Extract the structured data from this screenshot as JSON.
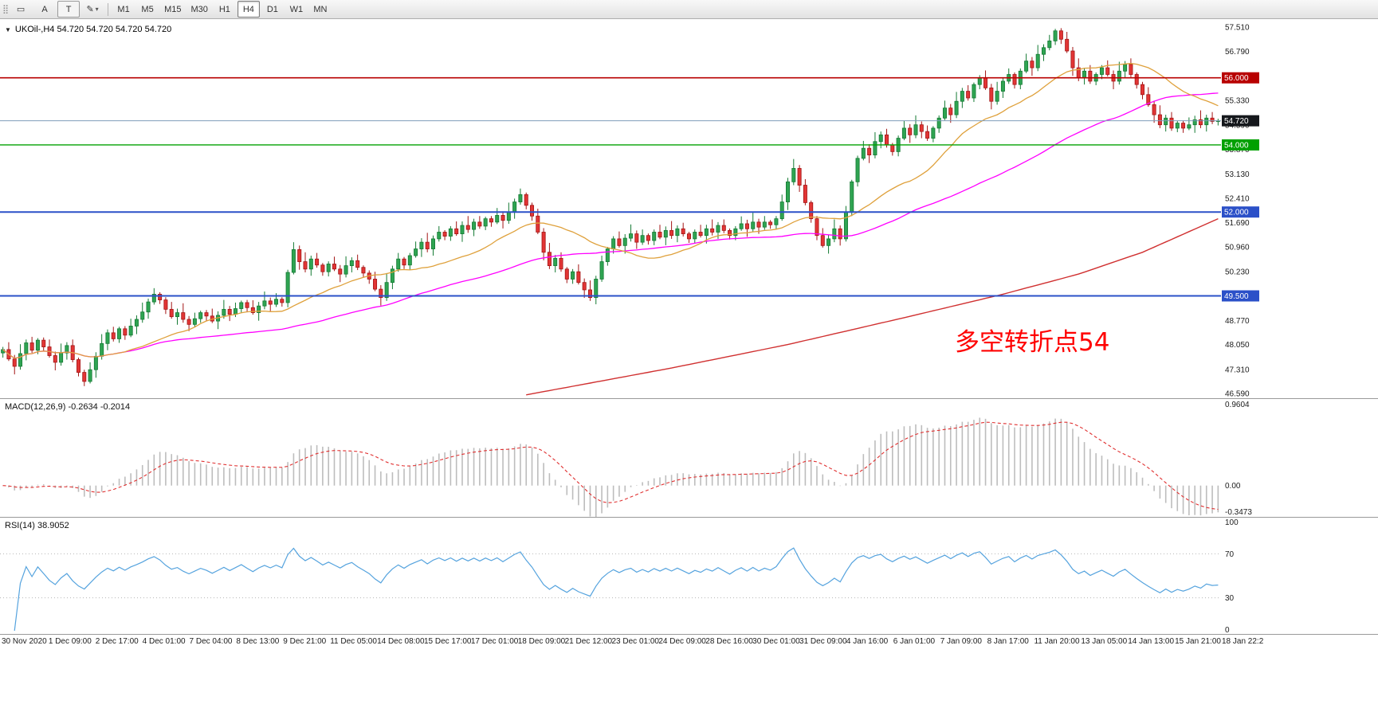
{
  "toolbar": {
    "tools": [
      {
        "name": "draw-tool",
        "glyph": "▭",
        "boxed": false
      },
      {
        "name": "arrow-tool",
        "label": "A",
        "boxed": false
      },
      {
        "name": "text-tool",
        "label": "T",
        "boxed": true
      },
      {
        "name": "shapes-tool",
        "glyph": "✎",
        "boxed": false,
        "dropdown": true
      }
    ],
    "timeframes": [
      "M1",
      "M5",
      "M15",
      "M30",
      "H1",
      "H4",
      "D1",
      "W1",
      "MN"
    ],
    "active_timeframe": "H4"
  },
  "chart": {
    "symbol_header": "UKOil-,H4  54.720 54.720 54.720 54.720",
    "annotation": "多空转折点54",
    "annotation_color": "#ff0000"
  },
  "macd_panel": {
    "label": "MACD(12,26,9) -0.2634 -0.2014",
    "axis": [
      {
        "text": "0.9604",
        "pos": "top"
      },
      {
        "text": "0.00",
        "pos": "zero"
      },
      {
        "text": "-0.3473",
        "pos": "bottom"
      }
    ]
  },
  "rsi_panel": {
    "label": "RSI(14) 38.9052",
    "axis": [
      {
        "text": "100",
        "value": 100
      },
      {
        "text": "70",
        "value": 70
      },
      {
        "text": "30",
        "value": 30
      },
      {
        "text": "0",
        "value": 0
      }
    ]
  },
  "chart_data": {
    "type": "candlestick",
    "symbol": "UKOil-",
    "timeframe": "H4",
    "current_price": 54.72,
    "ylim": [
      46.45,
      57.75
    ],
    "up_color": "#2fa452",
    "up_edge": "#147a33",
    "down_color": "#e23535",
    "down_edge": "#a31515",
    "first_open": 47.8,
    "closes": [
      47.9,
      47.62,
      47.4,
      47.78,
      48.1,
      47.88,
      48.18,
      47.98,
      47.72,
      47.52,
      47.8,
      48.02,
      47.6,
      47.22,
      46.95,
      47.3,
      47.7,
      48.08,
      48.4,
      48.22,
      48.52,
      48.33,
      48.6,
      48.8,
      49.02,
      49.32,
      49.55,
      49.38,
      49.1,
      48.88,
      49.0,
      48.8,
      48.65,
      48.82,
      49.0,
      48.9,
      48.75,
      48.92,
      49.1,
      48.95,
      49.12,
      49.3,
      49.15,
      49.0,
      49.2,
      49.35,
      49.25,
      49.4,
      49.3,
      50.2,
      50.88,
      50.52,
      50.3,
      50.6,
      50.42,
      50.22,
      50.45,
      50.3,
      50.15,
      50.4,
      50.55,
      50.35,
      50.18,
      50.0,
      49.7,
      49.45,
      49.9,
      50.3,
      50.6,
      50.42,
      50.7,
      50.9,
      51.1,
      50.9,
      51.2,
      51.4,
      51.28,
      51.5,
      51.35,
      51.6,
      51.48,
      51.7,
      51.58,
      51.8,
      51.7,
      51.9,
      51.75,
      52.0,
      52.3,
      52.52,
      52.2,
      51.88,
      51.4,
      50.8,
      50.4,
      50.62,
      50.3,
      50.0,
      50.22,
      49.9,
      49.68,
      49.45,
      50.0,
      50.52,
      50.9,
      51.2,
      51.0,
      51.22,
      51.35,
      51.1,
      51.3,
      51.15,
      51.4,
      51.25,
      51.45,
      51.3,
      51.5,
      51.35,
      51.2,
      51.4,
      51.3,
      51.5,
      51.4,
      51.6,
      51.45,
      51.3,
      51.5,
      51.65,
      51.5,
      51.7,
      51.55,
      51.7,
      51.62,
      51.8,
      52.3,
      52.9,
      53.3,
      52.8,
      52.28,
      51.8,
      51.3,
      51.0,
      51.2,
      51.5,
      51.2,
      52.0,
      52.9,
      53.6,
      53.9,
      53.7,
      54.1,
      54.3,
      54.0,
      53.8,
      54.2,
      54.5,
      54.3,
      54.6,
      54.4,
      54.2,
      54.5,
      54.8,
      55.1,
      54.9,
      55.3,
      55.6,
      55.4,
      55.8,
      56.0,
      55.7,
      55.3,
      55.6,
      55.9,
      56.1,
      55.8,
      56.2,
      56.5,
      56.3,
      56.7,
      56.9,
      57.1,
      57.4,
      57.15,
      56.8,
      56.3,
      56.0,
      56.2,
      55.9,
      56.1,
      56.3,
      56.1,
      55.9,
      56.2,
      56.4,
      56.1,
      55.8,
      55.5,
      55.2,
      54.9,
      54.6,
      54.8,
      54.5,
      54.65,
      54.5,
      54.6,
      54.75,
      54.6,
      54.8,
      54.7,
      54.72
    ],
    "wick_upper": [
      0.08,
      0.22,
      0.12,
      0.28,
      0.1,
      0.18,
      0.06
    ],
    "wick_lower": [
      0.14,
      0.06,
      0.24,
      0.1,
      0.2,
      0.08,
      0.12
    ],
    "price_axis_labels": [
      {
        "value": 57.51,
        "text": "57.510"
      },
      {
        "value": 56.79,
        "text": "56.790"
      },
      {
        "value": 55.33,
        "text": "55.330"
      },
      {
        "value": 54.59,
        "text": "54.590"
      },
      {
        "value": 53.87,
        "text": "53.870"
      },
      {
        "value": 53.13,
        "text": "53.130"
      },
      {
        "value": 52.41,
        "text": "52.410"
      },
      {
        "value": 51.69,
        "text": "51.690"
      },
      {
        "value": 50.96,
        "text": "50.960"
      },
      {
        "value": 50.23,
        "text": "50.230"
      },
      {
        "value": 48.77,
        "text": "48.770"
      },
      {
        "value": 48.05,
        "text": "48.050"
      },
      {
        "value": 47.31,
        "text": "47.310"
      },
      {
        "value": 46.59,
        "text": "46.590"
      }
    ],
    "price_tags": [
      {
        "value": 56.0,
        "text": "56.000",
        "bg": "#b80000",
        "fg": "#ffffff"
      },
      {
        "value": 54.0,
        "text": "54.000",
        "bg": "#00a000",
        "fg": "#ffffff"
      },
      {
        "value": 52.0,
        "text": "52.000",
        "bg": "#2b50c8",
        "fg": "#ffffff"
      },
      {
        "value": 49.5,
        "text": "49.500",
        "bg": "#2b50c8",
        "fg": "#ffffff"
      },
      {
        "value": 54.72,
        "text": "54.720",
        "bg": "#15181c",
        "fg": "#ffffff"
      }
    ],
    "hlines": [
      {
        "value": 56.0,
        "color": "#b80000",
        "width": 1.6
      },
      {
        "value": 54.0,
        "color": "#00a000",
        "width": 1.4
      },
      {
        "value": 52.0,
        "color": "#2b50c8",
        "width": 2
      },
      {
        "value": 49.5,
        "color": "#2b50c8",
        "width": 2
      },
      {
        "value": 54.72,
        "color": "#7f9db9",
        "width": 1
      }
    ],
    "ma": {
      "fast": {
        "period": 20,
        "color": "#dfa13c"
      },
      "mid": {
        "period": 55,
        "color": "#ff00ff"
      },
      "slow": {
        "color": "#d03030",
        "points": [
          [
            90,
            46.55
          ],
          [
            115,
            47.35
          ],
          [
            135,
            48.05
          ],
          [
            155,
            48.85
          ],
          [
            172,
            49.55
          ],
          [
            185,
            50.15
          ],
          [
            196,
            50.8
          ],
          [
            209,
            51.8
          ]
        ]
      }
    },
    "macd": {
      "fast": 12,
      "slow": 26,
      "signal": 9,
      "ylim": [
        -0.3473,
        0.9604
      ],
      "bar_color": "#bdbdbd",
      "signal_color": "#e03030"
    },
    "rsi": {
      "period": 14,
      "color": "#55a3de",
      "levels": [
        70,
        30
      ]
    },
    "time_labels": [
      "30 Nov 2020",
      "1 Dec 09:00",
      "2 Dec 17:00",
      "4 Dec 01:00",
      "7 Dec 04:00",
      "8 Dec 13:00",
      "9 Dec 21:00",
      "11 Dec 05:00",
      "14 Dec 08:00",
      "15 Dec 17:00",
      "17 Dec 01:00",
      "18 Dec 09:00",
      "21 Dec 12:00",
      "23 Dec 01:00",
      "24 Dec 09:00",
      "28 Dec 16:00",
      "30 Dec 01:00",
      "31 Dec 09:00",
      "4 Jan 16:00",
      "6 Jan 01:00",
      "7 Jan 09:00",
      "8 Jan 17:00",
      "11 Jan 20:00",
      "13 Jan 05:00",
      "14 Jan 13:00",
      "15 Jan 21:00",
      "18 Jan 22:2"
    ]
  }
}
